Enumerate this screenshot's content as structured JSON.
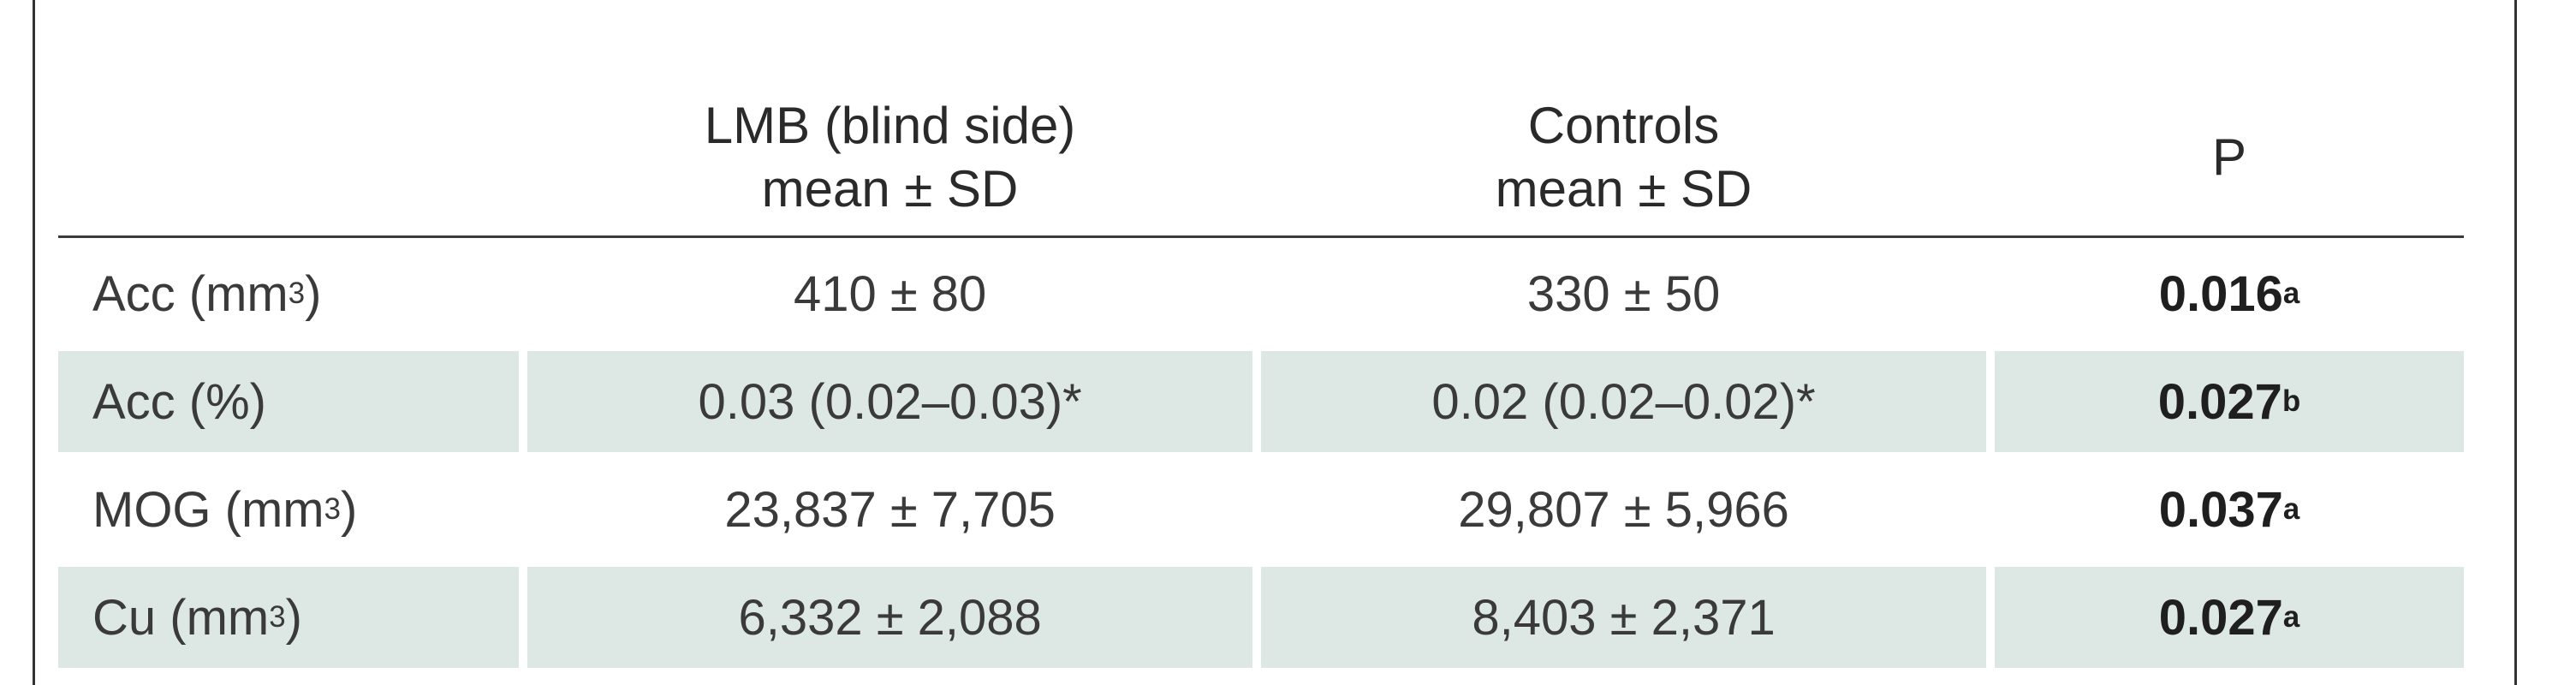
{
  "table": {
    "header": {
      "col1": "",
      "col2_line1": "LMB (blind side)",
      "col2_line2": "mean ± SD",
      "col3_line1": "Controls",
      "col3_line2": "mean ± SD",
      "col4": "P"
    },
    "rows": [
      {
        "label": "Acc (mm",
        "unit_sup": "3",
        "label_end": ")",
        "lmb": "410 ± 80",
        "controls": "330 ± 50",
        "p": "0.016",
        "p_sup": "a"
      },
      {
        "label": "Acc (%)",
        "unit_sup": "",
        "label_end": "",
        "lmb": "0.03 (0.02–0.03)*",
        "controls": "0.02 (0.02–0.02)*",
        "p": "0.027",
        "p_sup": "b"
      },
      {
        "label": "MOG (mm",
        "unit_sup": "3",
        "label_end": ")",
        "lmb": "23,837 ± 7,705",
        "controls": "29,807 ± 5,966",
        "p": "0.037",
        "p_sup": "a"
      },
      {
        "label": "Cu (mm",
        "unit_sup": "3",
        "label_end": ")",
        "lmb": "6,332 ± 2,088",
        "controls": "8,403 ± 2,371",
        "p": "0.027",
        "p_sup": "a"
      }
    ]
  }
}
